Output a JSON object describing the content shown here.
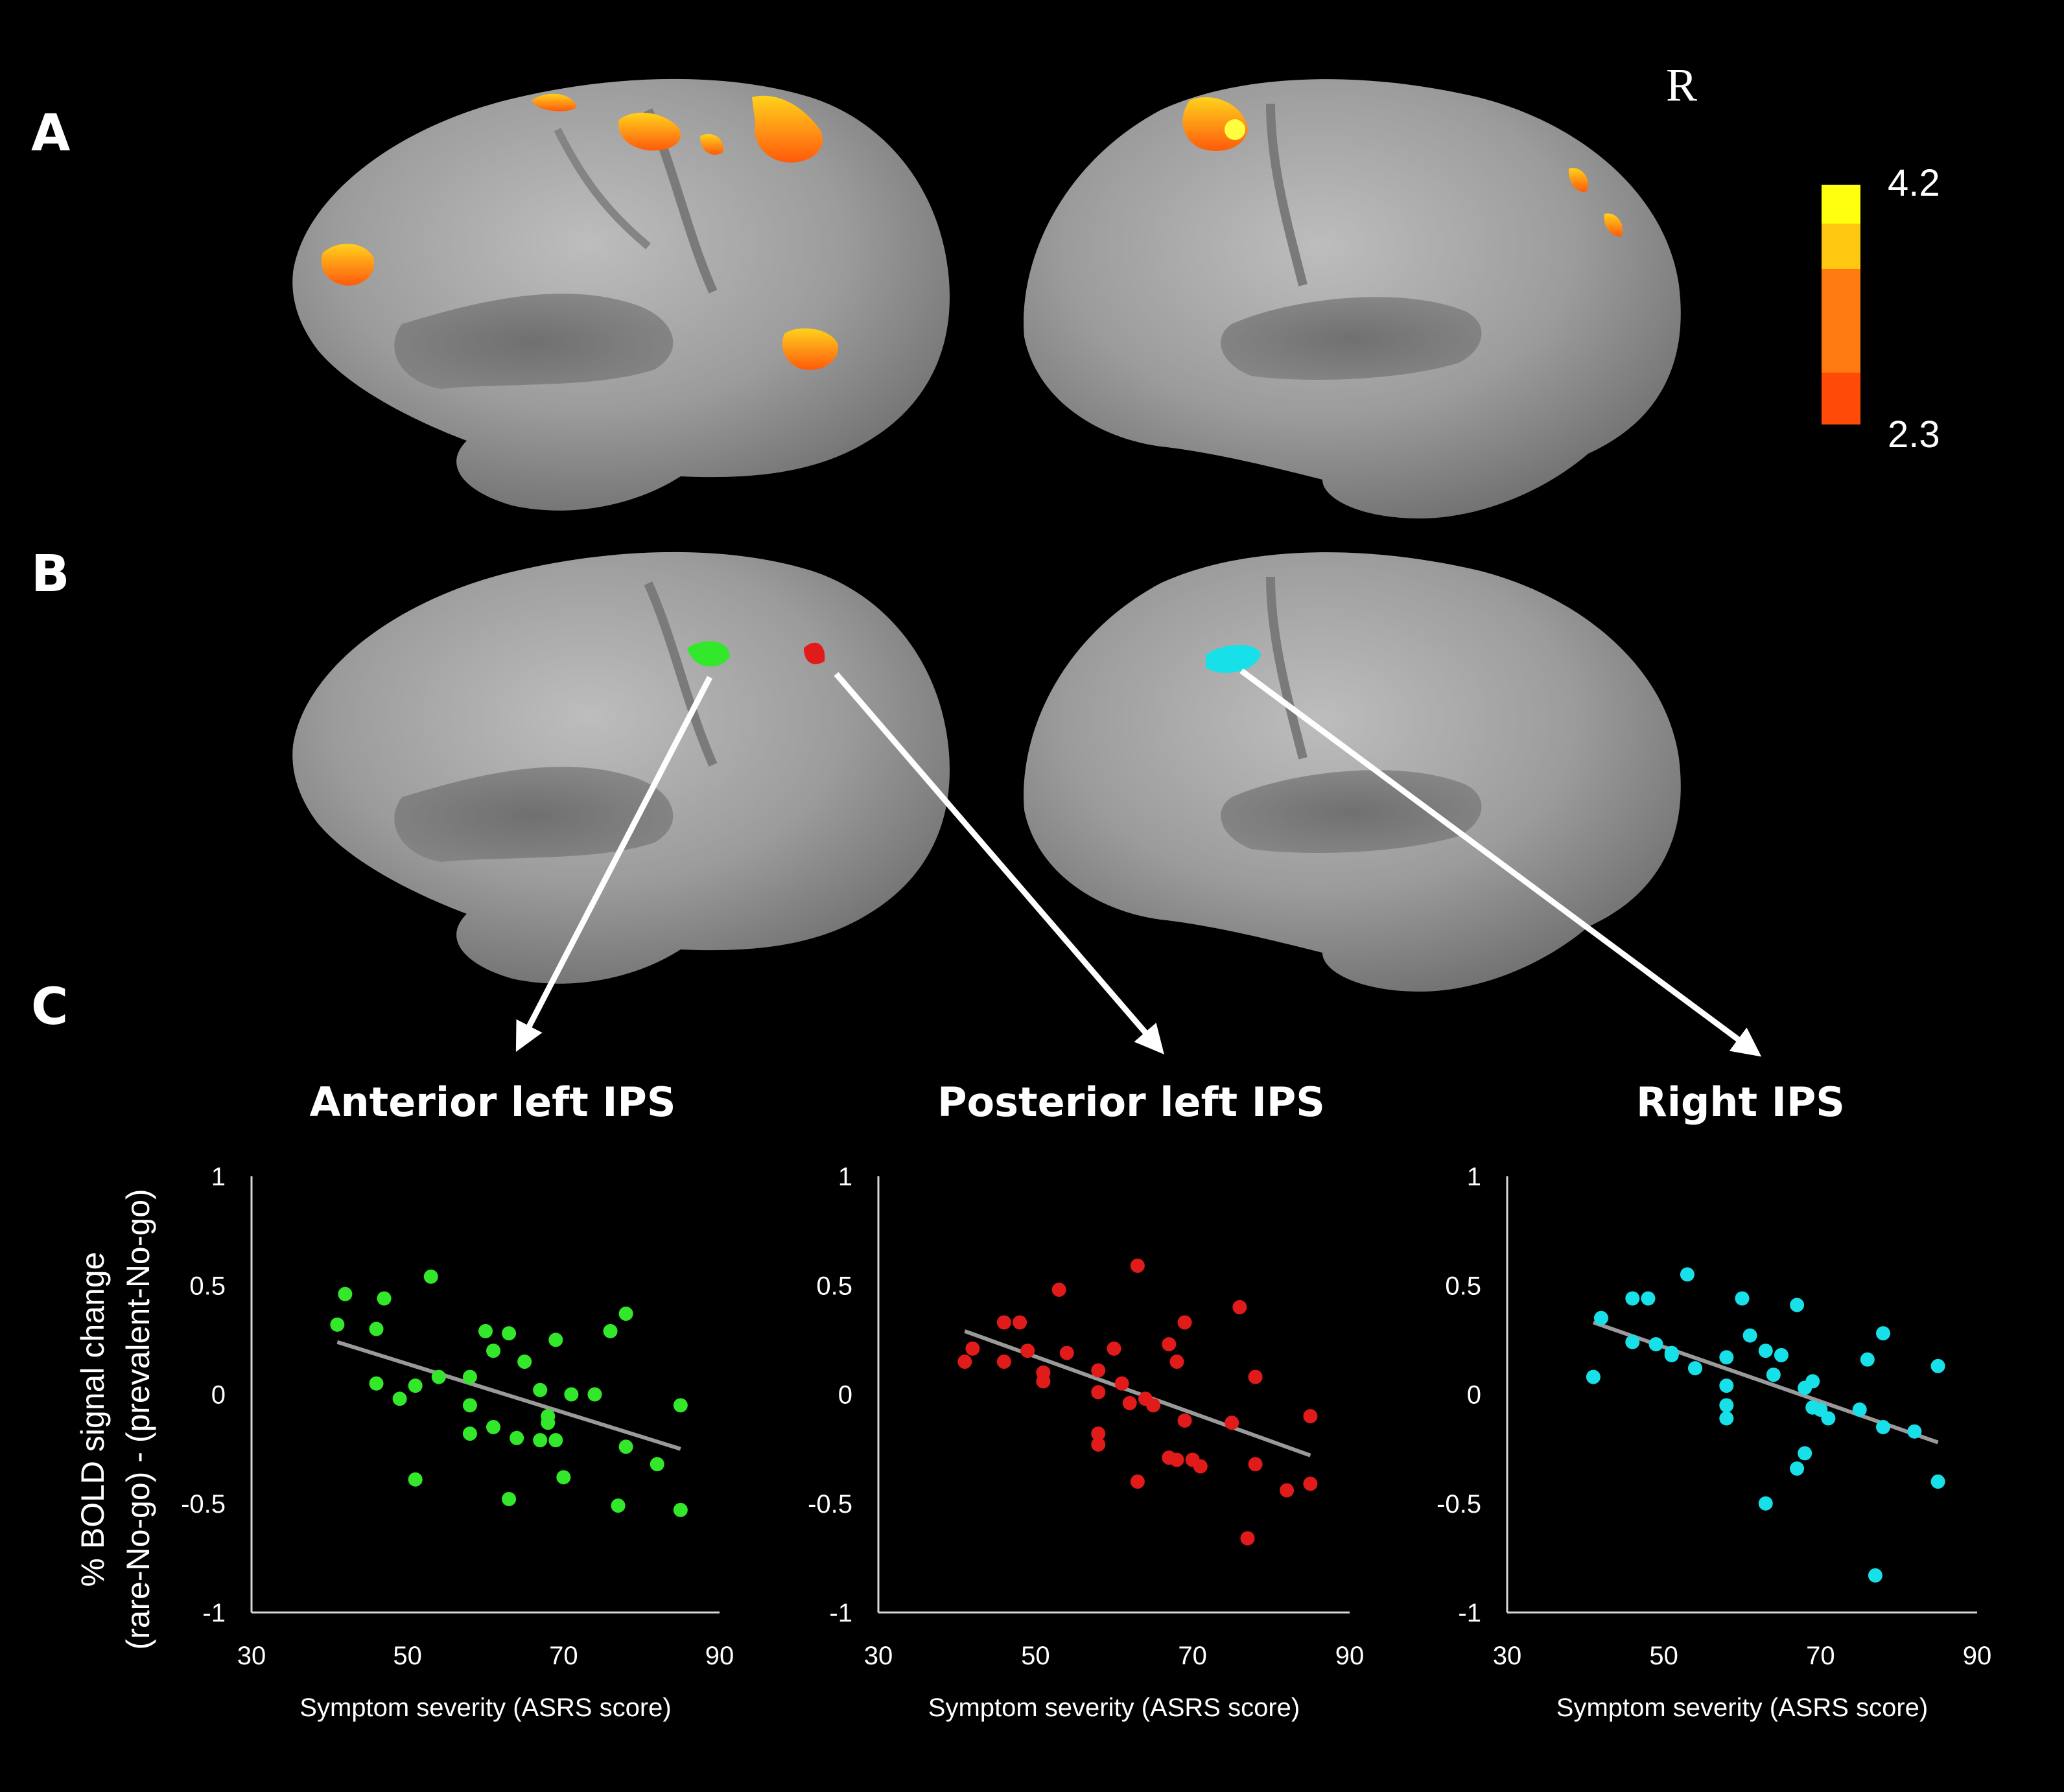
{
  "panels": {
    "a": "A",
    "b": "B",
    "c": "C"
  },
  "hemisphere_label": "R",
  "colorbar": {
    "max_label": "4.2",
    "min_label": "2.3",
    "colors": [
      "#ffff10",
      "#ffc810",
      "#ff7a10",
      "#ff4a08"
    ]
  },
  "roi_colors": {
    "anterior_left_ips": "#33e82a",
    "posterior_left_ips": "#e11a1a",
    "right_ips": "#18e0e8"
  },
  "y_axis_label_line1": "% BOLD signal change",
  "y_axis_label_line2": "(rare-No-go) - (prevalent-No-go)",
  "chart_data": [
    {
      "type": "scatter",
      "title": "Anterior left IPS",
      "xlabel": "Symptom severity (ASRS score)",
      "ylabel": "% BOLD signal change (rare-No-go) - (prevalent-No-go)",
      "xlim": [
        30,
        90
      ],
      "ylim": [
        -1,
        1
      ],
      "xticks": [
        "30",
        "50",
        "70",
        "90"
      ],
      "yticks": [
        "1",
        "0.5",
        "0",
        "-0.5",
        "-1"
      ],
      "color": "#33e82a",
      "trendline": {
        "x": [
          41,
          85
        ],
        "y": [
          0.24,
          -0.25
        ],
        "color": "#9a9a9a"
      },
      "points": [
        [
          41,
          0.32
        ],
        [
          42,
          0.46
        ],
        [
          46,
          0.3
        ],
        [
          46,
          0.05
        ],
        [
          47,
          0.44
        ],
        [
          49,
          -0.02
        ],
        [
          51,
          0.04
        ],
        [
          51,
          -0.39
        ],
        [
          53,
          0.54
        ],
        [
          54,
          0.08
        ],
        [
          58,
          0.08
        ],
        [
          58,
          -0.05
        ],
        [
          58,
          -0.18
        ],
        [
          60,
          0.29
        ],
        [
          61,
          -0.15
        ],
        [
          61,
          0.2
        ],
        [
          63,
          0.28
        ],
        [
          63,
          -0.48
        ],
        [
          64,
          -0.2
        ],
        [
          65,
          0.15
        ],
        [
          67,
          0.02
        ],
        [
          67,
          -0.21
        ],
        [
          68,
          -0.1
        ],
        [
          68,
          -0.13
        ],
        [
          69,
          0.25
        ],
        [
          69,
          -0.21
        ],
        [
          70,
          -0.38
        ],
        [
          71,
          0.0
        ],
        [
          74,
          0.0
        ],
        [
          76,
          0.29
        ],
        [
          77,
          -0.51
        ],
        [
          78,
          0.37
        ],
        [
          78,
          -0.24
        ],
        [
          82,
          -0.32
        ],
        [
          85,
          -0.05
        ],
        [
          85,
          -0.53
        ]
      ]
    },
    {
      "type": "scatter",
      "title": "Posterior left IPS",
      "xlabel": "Symptom severity (ASRS score)",
      "ylabel": "% BOLD signal change (rare-No-go) - (prevalent-No-go)",
      "xlim": [
        30,
        90
      ],
      "ylim": [
        -1,
        1
      ],
      "xticks": [
        "30",
        "50",
        "70",
        "90"
      ],
      "yticks": [
        "1",
        "0.5",
        "0",
        "-0.5",
        "-1"
      ],
      "color": "#e11a1a",
      "trendline": {
        "x": [
          41,
          85
        ],
        "y": [
          0.29,
          -0.28
        ],
        "color": "#9a9a9a"
      },
      "points": [
        [
          41,
          0.15
        ],
        [
          42,
          0.21
        ],
        [
          46,
          0.33
        ],
        [
          46,
          0.15
        ],
        [
          48,
          0.33
        ],
        [
          49,
          0.2
        ],
        [
          51,
          0.1
        ],
        [
          51,
          0.06
        ],
        [
          53,
          0.48
        ],
        [
          54,
          0.19
        ],
        [
          58,
          0.11
        ],
        [
          58,
          0.01
        ],
        [
          58,
          -0.18
        ],
        [
          58,
          -0.23
        ],
        [
          60,
          0.21
        ],
        [
          61,
          0.05
        ],
        [
          62,
          -0.04
        ],
        [
          63,
          0.59
        ],
        [
          63,
          -0.4
        ],
        [
          64,
          -0.02
        ],
        [
          65,
          -0.05
        ],
        [
          67,
          0.23
        ],
        [
          67,
          -0.29
        ],
        [
          68,
          0.15
        ],
        [
          68,
          -0.3
        ],
        [
          69,
          0.33
        ],
        [
          69,
          -0.12
        ],
        [
          70,
          -0.3
        ],
        [
          71,
          -0.33
        ],
        [
          75,
          -0.13
        ],
        [
          76,
          0.4
        ],
        [
          77,
          -0.66
        ],
        [
          78,
          0.08
        ],
        [
          78,
          -0.32
        ],
        [
          82,
          -0.44
        ],
        [
          85,
          -0.1
        ],
        [
          85,
          -0.41
        ]
      ]
    },
    {
      "type": "scatter",
      "title": "Right IPS",
      "xlabel": "Symptom severity (ASRS score)",
      "ylabel": "% BOLD signal change (rare-No-go) - (prevalent-No-go)",
      "xlim": [
        30,
        90
      ],
      "ylim": [
        -1,
        1
      ],
      "xticks": [
        "30",
        "50",
        "70",
        "90"
      ],
      "yticks": [
        "1",
        "0.5",
        "0",
        "-0.5",
        "-1"
      ],
      "color": "#18e0e8",
      "trendline": {
        "x": [
          41,
          85
        ],
        "y": [
          0.33,
          -0.22
        ],
        "color": "#9a9a9a"
      },
      "points": [
        [
          41,
          0.08
        ],
        [
          42,
          0.35
        ],
        [
          46,
          0.44
        ],
        [
          46,
          0.24
        ],
        [
          48,
          0.44
        ],
        [
          49,
          0.23
        ],
        [
          51,
          0.19
        ],
        [
          51,
          0.18
        ],
        [
          53,
          0.55
        ],
        [
          54,
          0.12
        ],
        [
          58,
          0.17
        ],
        [
          58,
          0.04
        ],
        [
          58,
          -0.05
        ],
        [
          58,
          -0.11
        ],
        [
          60,
          0.44
        ],
        [
          61,
          0.27
        ],
        [
          63,
          0.2
        ],
        [
          63,
          -0.5
        ],
        [
          64,
          0.09
        ],
        [
          65,
          0.18
        ],
        [
          67,
          0.41
        ],
        [
          67,
          -0.34
        ],
        [
          68,
          0.03
        ],
        [
          68,
          -0.27
        ],
        [
          69,
          0.06
        ],
        [
          69,
          -0.06
        ],
        [
          70,
          -0.07
        ],
        [
          71,
          -0.11
        ],
        [
          75,
          -0.07
        ],
        [
          76,
          0.16
        ],
        [
          77,
          -0.83
        ],
        [
          78,
          0.28
        ],
        [
          78,
          -0.15
        ],
        [
          82,
          -0.17
        ],
        [
          85,
          0.13
        ],
        [
          85,
          -0.4
        ]
      ]
    }
  ]
}
